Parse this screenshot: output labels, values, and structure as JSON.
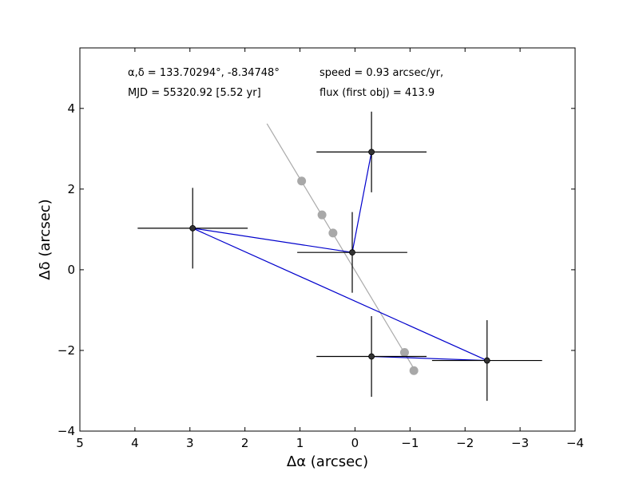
{
  "chart_data": {
    "type": "scatter",
    "title": "",
    "xlabel": "Δα (arcsec)",
    "ylabel": "Δδ (arcsec)",
    "xlim": [
      5,
      -4
    ],
    "ylim": [
      -4,
      5.5
    ],
    "x_inverted": true,
    "grid": false,
    "xticks": [
      5,
      4,
      3,
      2,
      1,
      0,
      -1,
      -2,
      -3,
      -4
    ],
    "yticks": [
      -4,
      -2,
      0,
      2,
      4
    ],
    "annotations": [
      "α,δ = 133.70294°, -8.34748°",
      "MJD = 55320.92 [5.52 yr]",
      "speed = 0.93 arcsec/yr,",
      "flux (first obj) = 413.9"
    ],
    "detections": [
      {
        "x": 2.95,
        "y": 1.03,
        "xerr": 1.0,
        "yerr": 1.0
      },
      {
        "x": 0.05,
        "y": 0.43,
        "xerr": 1.0,
        "yerr": 1.0
      },
      {
        "x": -0.3,
        "y": 2.92,
        "xerr": 1.0,
        "yerr": 1.0
      },
      {
        "x": -0.3,
        "y": -2.15,
        "xerr": 1.0,
        "yerr": 1.0
      },
      {
        "x": -2.4,
        "y": -2.25,
        "xerr": 1.0,
        "yerr": 1.0
      }
    ],
    "match_lines": [
      [
        [
          2.95,
          1.03
        ],
        [
          0.05,
          0.43
        ]
      ],
      [
        [
          0.05,
          0.43
        ],
        [
          -0.3,
          2.92
        ]
      ],
      [
        [
          2.95,
          1.03
        ],
        [
          -2.4,
          -2.25
        ]
      ],
      [
        [
          -0.3,
          -2.15
        ],
        [
          -2.4,
          -2.25
        ]
      ]
    ],
    "motion_track": {
      "start": [
        1.6,
        3.62
      ],
      "end": [
        -1.1,
        -2.52
      ]
    },
    "predicted_positions": [
      {
        "x": 0.97,
        "y": 2.2
      },
      {
        "x": 0.6,
        "y": 1.36
      },
      {
        "x": 0.4,
        "y": 0.91
      },
      {
        "x": -0.9,
        "y": -2.05
      },
      {
        "x": -1.07,
        "y": -2.5
      }
    ],
    "colors": {
      "detections": "#000000",
      "match_lines": "#0000cc",
      "motion_track": "#aaaaaa",
      "predicted_positions": "#a8a8a8"
    }
  }
}
